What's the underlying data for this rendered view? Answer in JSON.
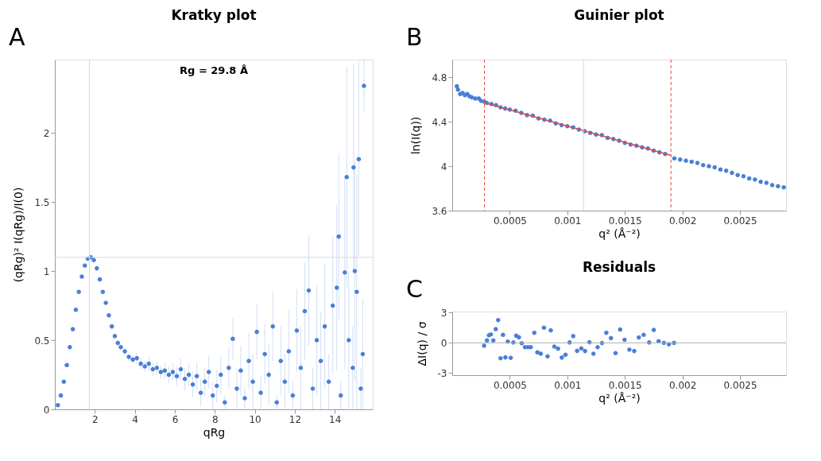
{
  "chart_data": [
    {
      "type": "scatter",
      "title": "Kratky plot",
      "xlabel": "qRg",
      "ylabel": "(qRg)² I(qRg)/I(0)",
      "annotations": [
        "A",
        "Rg = 29.8 Å"
      ],
      "xlim": [
        0,
        15.9
      ],
      "ylim": [
        0,
        2.53
      ],
      "xticks": [
        2,
        4,
        6,
        8,
        10,
        12,
        14
      ],
      "yticks": [
        0,
        0.5,
        1,
        1.5,
        2
      ],
      "grid": false,
      "marker": "circle",
      "ref_lines": [
        {
          "axis": "x",
          "value": 1.73,
          "color": "#d9d9d9"
        },
        {
          "axis": "y",
          "value": 1.1,
          "color": "#d9d9d9"
        }
      ],
      "series": [
        {
          "color": "#4a7fd6",
          "x": [
            0.15,
            0.3,
            0.45,
            0.6,
            0.75,
            0.9,
            1.05,
            1.2,
            1.35,
            1.5,
            1.65,
            1.8,
            1.95,
            2.1,
            2.25,
            2.4,
            2.55,
            2.7,
            2.85,
            3.0,
            3.15,
            3.3,
            3.5,
            3.7,
            3.9,
            4.1,
            4.3,
            4.5,
            4.7,
            4.9,
            5.1,
            5.3,
            5.5,
            5.7,
            5.9,
            6.1,
            6.3,
            6.5,
            6.7,
            6.9,
            7.1,
            7.3,
            7.5,
            7.7,
            7.9,
            8.1,
            8.3,
            8.5,
            8.7,
            8.9,
            9.1,
            9.3,
            9.5,
            9.7,
            9.9,
            10.1,
            10.3,
            10.5,
            10.7,
            10.9,
            11.1,
            11.3,
            11.5,
            11.7,
            11.9,
            12.1,
            12.3,
            12.5,
            12.7,
            12.9,
            13.1,
            13.3,
            13.5,
            13.7,
            13.9,
            14.1,
            14.2,
            14.3,
            14.5,
            14.6,
            14.7,
            14.9,
            14.94,
            15.0,
            15.1,
            15.2,
            15.3,
            15.4,
            15.46
          ],
          "values": [
            0.03,
            0.1,
            0.2,
            0.32,
            0.45,
            0.58,
            0.72,
            0.85,
            0.96,
            1.04,
            1.09,
            1.1,
            1.08,
            1.02,
            0.94,
            0.85,
            0.77,
            0.68,
            0.6,
            0.53,
            0.48,
            0.45,
            0.42,
            0.38,
            0.36,
            0.37,
            0.33,
            0.31,
            0.33,
            0.29,
            0.3,
            0.27,
            0.28,
            0.25,
            0.27,
            0.24,
            0.29,
            0.22,
            0.25,
            0.18,
            0.24,
            0.12,
            0.2,
            0.27,
            0.1,
            0.17,
            0.25,
            0.05,
            0.3,
            0.51,
            0.15,
            0.28,
            0.08,
            0.35,
            0.2,
            0.56,
            0.12,
            0.4,
            0.25,
            0.6,
            0.05,
            0.35,
            0.2,
            0.42,
            0.1,
            0.57,
            0.3,
            0.71,
            0.86,
            0.15,
            0.5,
            0.35,
            0.6,
            0.2,
            0.75,
            0.88,
            1.25,
            0.1,
            0.99,
            1.68,
            0.5,
            0.3,
            1.75,
            1.0,
            0.85,
            1.81,
            0.15,
            0.4,
            2.34
          ],
          "errors": [
            0.005,
            0.005,
            0.005,
            0.005,
            0.005,
            0.005,
            0.005,
            0.005,
            0.01,
            0.01,
            0.01,
            0.01,
            0.01,
            0.01,
            0.01,
            0.01,
            0.01,
            0.015,
            0.015,
            0.015,
            0.02,
            0.02,
            0.03,
            0.03,
            0.03,
            0.04,
            0.04,
            0.04,
            0.05,
            0.05,
            0.05,
            0.05,
            0.06,
            0.06,
            0.06,
            0.07,
            0.08,
            0.08,
            0.08,
            0.09,
            0.1,
            0.1,
            0.1,
            0.12,
            0.1,
            0.12,
            0.14,
            0.05,
            0.15,
            0.15,
            0.15,
            0.18,
            0.08,
            0.2,
            0.2,
            0.2,
            0.12,
            0.22,
            0.22,
            0.25,
            0.05,
            0.25,
            0.2,
            0.3,
            0.1,
            0.3,
            0.3,
            0.35,
            0.4,
            0.15,
            0.4,
            0.35,
            0.45,
            0.2,
            0.5,
            0.6,
            0.6,
            0.1,
            0.7,
            0.8,
            0.5,
            0.3,
            0.75,
            0.8,
            0.85,
            0.7,
            0.15,
            0.4,
            0.19
          ]
        }
      ]
    },
    {
      "type": "scatter",
      "title": "Guinier plot",
      "xlabel": "q² (Å⁻²)",
      "ylabel": "ln(I(q))",
      "annotations": [
        "B"
      ],
      "xlim": [
        0,
        0.0029
      ],
      "ylim": [
        3.6,
        4.96
      ],
      "xticks": [
        0.0005,
        0.001,
        0.0015,
        0.002,
        0.0025
      ],
      "yticks": [
        3.6,
        4,
        4.4,
        4.8
      ],
      "grid": false,
      "marker": "circle",
      "ref_lines": [
        {
          "axis": "x",
          "value": 0.00028,
          "color": "#e8473f",
          "line_style": "dashed"
        },
        {
          "axis": "x",
          "value": 0.0019,
          "color": "#e8473f",
          "line_style": "dashed"
        },
        {
          "axis": "x",
          "value": 0.00114,
          "color": "#d9d9d9"
        }
      ],
      "series": [
        {
          "color": "#4a7fd6",
          "x": [
            4e-05,
            5e-05,
            7e-05,
            9e-05,
            0.00011,
            0.00013,
            0.00015,
            0.00017,
            0.0002,
            0.00023,
            0.00025,
            0.00028,
            0.0003,
            0.00034,
            0.00038,
            0.00042,
            0.00046,
            0.0005,
            0.00055,
            0.0006,
            0.00065,
            0.0007,
            0.00075,
            0.0008,
            0.00085,
            0.0009,
            0.00095,
            0.001,
            0.00105,
            0.0011,
            0.00115,
            0.0012,
            0.00125,
            0.0013,
            0.00135,
            0.0014,
            0.00145,
            0.0015,
            0.00155,
            0.0016,
            0.00165,
            0.0017,
            0.00175,
            0.0018,
            0.00185,
            0.00193,
            0.00198,
            0.00203,
            0.00208,
            0.00213,
            0.00218,
            0.00223,
            0.00228,
            0.00233,
            0.00238,
            0.00243,
            0.00248,
            0.00253,
            0.00258,
            0.00263,
            0.00268,
            0.00273,
            0.00278,
            0.00283,
            0.00288
          ],
          "values": [
            4.72,
            4.69,
            4.65,
            4.66,
            4.64,
            4.65,
            4.63,
            4.62,
            4.61,
            4.61,
            4.59,
            4.58,
            4.57,
            4.56,
            4.55,
            4.53,
            4.52,
            4.51,
            4.5,
            4.48,
            4.46,
            4.455,
            4.43,
            4.42,
            4.41,
            4.385,
            4.37,
            4.36,
            4.35,
            4.33,
            4.315,
            4.3,
            4.285,
            4.28,
            4.255,
            4.245,
            4.23,
            4.21,
            4.195,
            4.185,
            4.17,
            4.16,
            4.14,
            4.125,
            4.11,
            4.07,
            4.06,
            4.05,
            4.04,
            4.03,
            4.01,
            4.0,
            3.99,
            3.97,
            3.96,
            3.94,
            3.92,
            3.91,
            3.89,
            3.88,
            3.86,
            3.85,
            3.83,
            3.82,
            3.81
          ]
        },
        {
          "type": "line",
          "marker": "none",
          "color": "#e8473f",
          "x": [
            0.00028,
            0.0019
          ],
          "values": [
            4.572,
            4.098
          ]
        }
      ]
    },
    {
      "type": "scatter",
      "title": "Residuals",
      "xlabel": "q² (Å⁻²)",
      "ylabel": "ΔI(q) / σ",
      "annotations": [
        "C"
      ],
      "xlim": [
        0,
        0.0029
      ],
      "ylim": [
        -3.2,
        3.1
      ],
      "xticks": [
        0.0005,
        0.001,
        0.0015,
        0.002,
        0.0025
      ],
      "yticks": [
        -3,
        0,
        3
      ],
      "grid": false,
      "marker": "circle",
      "ref_lines": [
        {
          "axis": "y",
          "value": 0,
          "color": "#b0b0b0"
        }
      ],
      "series": [
        {
          "color": "#4a7fd6",
          "x": [
            0.000277,
            0.000302,
            0.000319,
            0.000336,
            0.000357,
            0.000378,
            0.000399,
            0.00042,
            0.000441,
            0.000462,
            0.000483,
            0.000508,
            0.000531,
            0.000556,
            0.000579,
            0.000604,
            0.000632,
            0.000657,
            0.000682,
            0.000713,
            0.00074,
            0.000769,
            0.000797,
            0.000828,
            0.000856,
            0.000887,
            0.000919,
            0.000952,
            0.000984,
            0.00102,
            0.001051,
            0.001085,
            0.001122,
            0.001154,
            0.001192,
            0.001227,
            0.001263,
            0.001301,
            0.001339,
            0.001379,
            0.001419,
            0.001459,
            0.001497,
            0.001539,
            0.001581,
            0.001621,
            0.001663,
            0.001711,
            0.001751,
            0.001793,
            0.001839,
            0.001883,
            0.001927
          ],
          "values": [
            -0.28,
            0.24,
            0.75,
            0.83,
            0.24,
            1.36,
            2.26,
            -1.52,
            0.79,
            -1.44,
            0.12,
            -1.48,
            0.04,
            0.71,
            0.55,
            -0.04,
            -0.43,
            -0.43,
            -0.43,
            1.0,
            -0.94,
            -1.08,
            1.5,
            -1.34,
            1.24,
            -0.37,
            -0.57,
            -1.46,
            -1.18,
            0.04,
            0.67,
            -0.79,
            -0.55,
            -0.81,
            0.06,
            -1.08,
            -0.43,
            -0.02,
            1.0,
            0.47,
            -1.02,
            1.32,
            0.31,
            -0.67,
            -0.81,
            0.53,
            0.79,
            0.04,
            1.28,
            0.16,
            0,
            -0.14,
            0
          ]
        }
      ]
    }
  ]
}
